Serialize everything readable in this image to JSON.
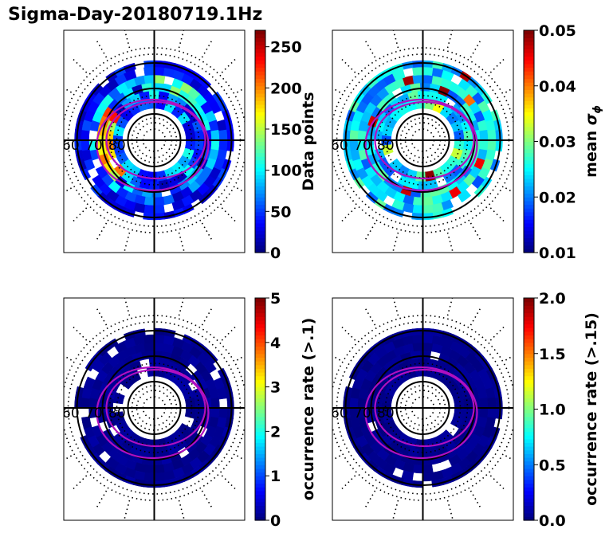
{
  "title": "Sigma-Day-20180719.1Hz",
  "colors": {
    "frame": "#000000",
    "boundary_ring": "#b010c0",
    "background_bin": "#00008f"
  },
  "chart_data": [
    {
      "type": "heatmap",
      "projection": "polar (magnetic latitude / local time)",
      "lat_ring_labels": [
        "60",
        "70",
        "80"
      ],
      "colorbar": {
        "label": "Data points",
        "label_math": false,
        "range": [
          0,
          270
        ],
        "ticks": [
          "0",
          "50",
          "100",
          "150",
          "200",
          "250"
        ],
        "tick_values": [
          0,
          50,
          100,
          150,
          200,
          250
        ],
        "colormap": "jet"
      }
    },
    {
      "type": "heatmap",
      "projection": "polar (magnetic latitude / local time)",
      "lat_ring_labels": [
        "60",
        "70",
        "80"
      ],
      "colorbar": {
        "label": "mean σ",
        "label_sub": "ϕ",
        "label_math": true,
        "range": [
          0.01,
          0.05
        ],
        "ticks": [
          "0.01",
          "0.02",
          "0.03",
          "0.04",
          "0.05"
        ],
        "tick_values": [
          0.01,
          0.02,
          0.03,
          0.04,
          0.05
        ],
        "colormap": "jet"
      }
    },
    {
      "type": "heatmap",
      "projection": "polar (magnetic latitude / local time)",
      "lat_ring_labels": [
        "60",
        "70",
        "80"
      ],
      "colorbar": {
        "label": "occurrence rate (>.1)",
        "label_math": false,
        "range": [
          0,
          5
        ],
        "ticks": [
          "0",
          "1",
          "2",
          "3",
          "4",
          "5"
        ],
        "tick_values": [
          0,
          1,
          2,
          3,
          4,
          5
        ],
        "colormap": "jet"
      }
    },
    {
      "type": "heatmap",
      "projection": "polar (magnetic latitude / local time)",
      "lat_ring_labels": [
        "60",
        "70",
        "80"
      ],
      "colorbar": {
        "label": "occurrence rate (>.15)",
        "label_math": false,
        "range": [
          0,
          2
        ],
        "ticks": [
          "0.0",
          "0.5",
          "1.0",
          "1.5",
          "2.0"
        ],
        "tick_values": [
          0,
          0.5,
          1,
          1.5,
          2
        ],
        "colormap": "jet"
      }
    }
  ]
}
